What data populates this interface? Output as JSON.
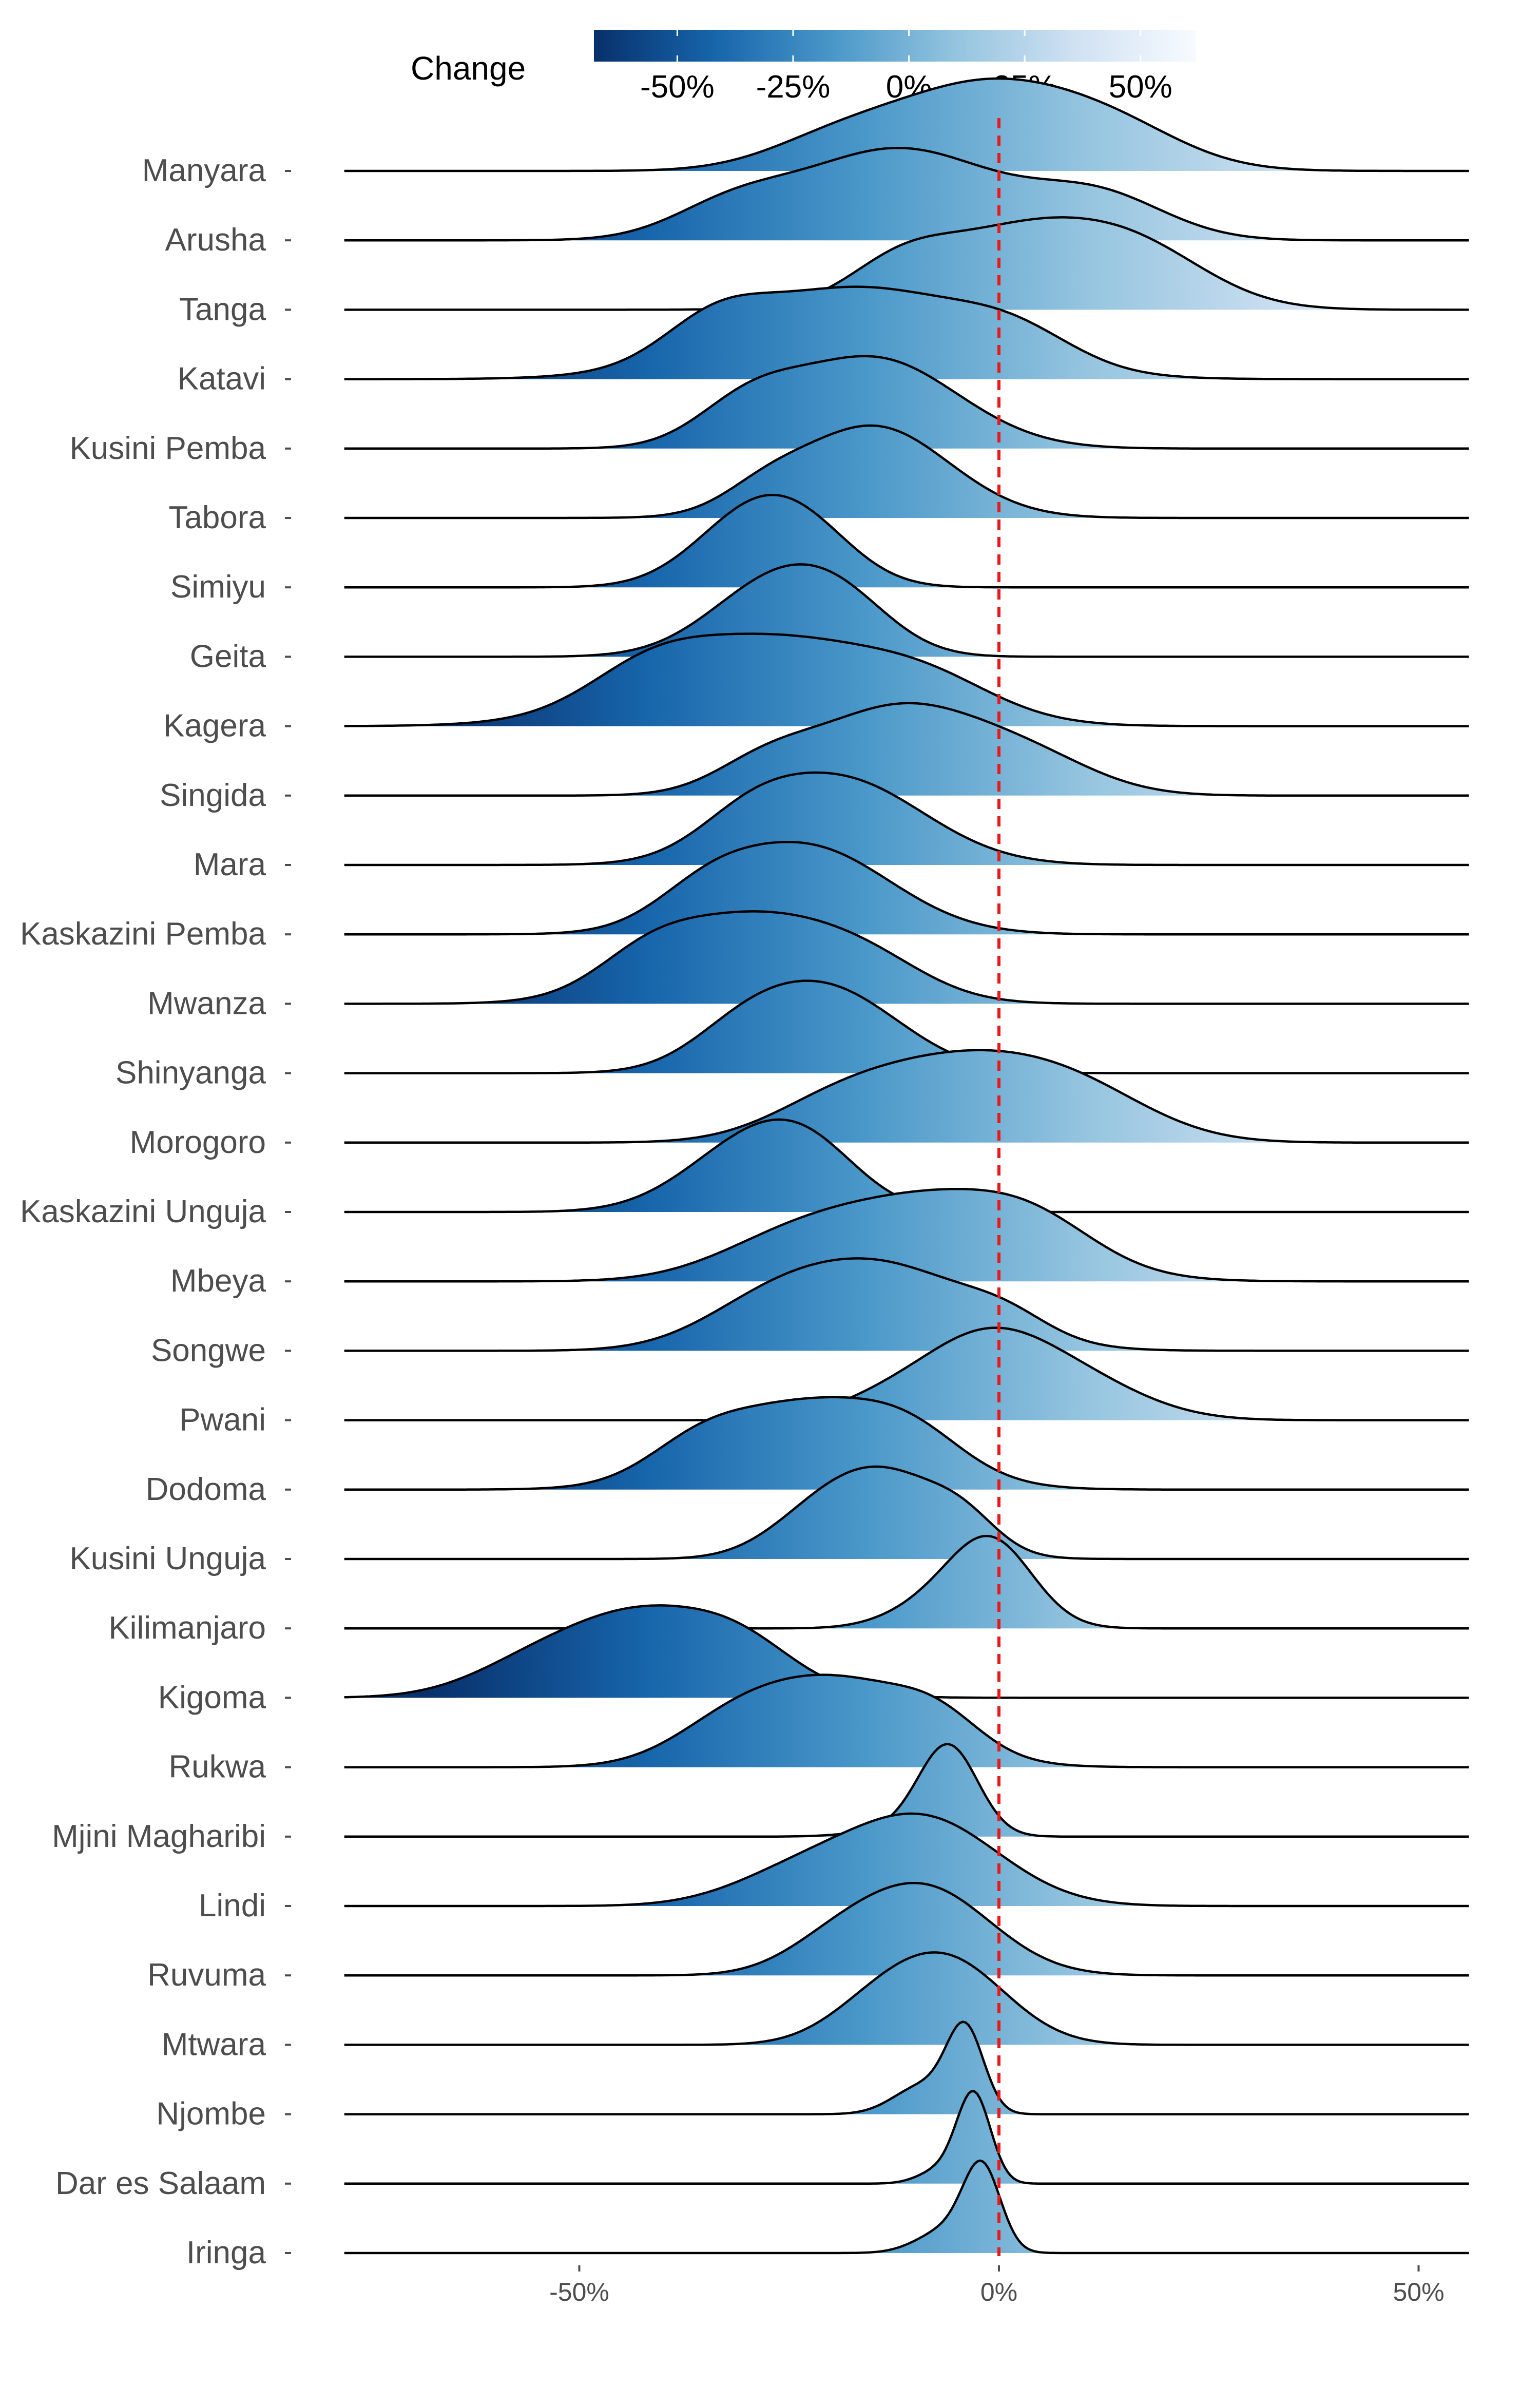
{
  "chart_data": {
    "type": "ridgeline",
    "xlim": [
      -78,
      56
    ],
    "x_ticks": [
      -50,
      0,
      50
    ],
    "x_tick_labels": [
      "-50%",
      "0%",
      "50%"
    ],
    "reference_line_x": 0,
    "reference_line_color": "#e8191c",
    "legend": {
      "title": "Change",
      "placement": "top",
      "range": [
        -68,
        62
      ],
      "ticks": [
        -50,
        -25,
        0,
        25,
        50
      ],
      "tick_labels": [
        "-50%",
        "-25%",
        "0%",
        "25%",
        "50%"
      ],
      "colors": [
        "#08306b",
        "#1765ab",
        "#4a98c9",
        "#94c4df",
        "#d0e1f2",
        "#f7fbff"
      ]
    },
    "series": [
      {
        "name": "Manyara",
        "peaks": [
          [
            -1,
            1.0,
            12
          ],
          [
            -20,
            0.25,
            8
          ],
          [
            15,
            0.25,
            8
          ]
        ]
      },
      {
        "name": "Arusha",
        "peaks": [
          [
            -12,
            1.0,
            12
          ],
          [
            -32,
            0.3,
            7
          ],
          [
            12,
            0.45,
            8
          ]
        ]
      },
      {
        "name": "Tanga",
        "peaks": [
          [
            4,
            1.0,
            12
          ],
          [
            -12,
            0.35,
            6
          ],
          [
            18,
            0.35,
            8
          ]
        ]
      },
      {
        "name": "Katavi",
        "peaks": [
          [
            -17,
            1.0,
            14
          ],
          [
            -34,
            0.35,
            6
          ],
          [
            2,
            0.3,
            7
          ]
        ]
      },
      {
        "name": "Kusini Pemba",
        "peaks": [
          [
            -15,
            1.0,
            10
          ],
          [
            -30,
            0.4,
            6
          ]
        ]
      },
      {
        "name": "Tabora",
        "peaks": [
          [
            -15,
            1.0,
            9
          ],
          [
            -28,
            0.2,
            5
          ]
        ]
      },
      {
        "name": "Simiyu",
        "peaks": [
          [
            -29,
            1.0,
            7
          ],
          [
            -22,
            0.4,
            6
          ]
        ]
      },
      {
        "name": "Geita",
        "peaks": [
          [
            -26,
            1.0,
            8
          ],
          [
            -18,
            0.35,
            6
          ]
        ]
      },
      {
        "name": "Kagera",
        "peaks": [
          [
            -27,
            1.0,
            14
          ],
          [
            -42,
            0.3,
            7
          ],
          [
            -8,
            0.3,
            8
          ]
        ]
      },
      {
        "name": "Singida",
        "peaks": [
          [
            -12,
            1.0,
            10
          ],
          [
            4,
            0.35,
            8
          ],
          [
            -28,
            0.3,
            6
          ]
        ]
      },
      {
        "name": "Mara",
        "peaks": [
          [
            -19,
            1.0,
            10
          ],
          [
            -30,
            0.3,
            6
          ]
        ]
      },
      {
        "name": "Kaskazini Pemba",
        "peaks": [
          [
            -23,
            1.0,
            10
          ],
          [
            -35,
            0.3,
            6
          ]
        ]
      },
      {
        "name": "Mwanza",
        "peaks": [
          [
            -29,
            1.0,
            11
          ],
          [
            -42,
            0.3,
            6
          ],
          [
            -15,
            0.25,
            7
          ]
        ]
      },
      {
        "name": "Shinyanga",
        "peaks": [
          [
            -21,
            1.0,
            9
          ],
          [
            -31,
            0.25,
            6
          ]
        ]
      },
      {
        "name": "Morogoro",
        "peaks": [
          [
            -5,
            1.0,
            11
          ],
          [
            -20,
            0.35,
            8
          ],
          [
            10,
            0.5,
            9
          ]
        ]
      },
      {
        "name": "Kaskazini Unguja",
        "peaks": [
          [
            -29,
            1.0,
            8
          ],
          [
            -22,
            0.45,
            6
          ]
        ]
      },
      {
        "name": "Mbeya",
        "peaks": [
          [
            -7,
            1.0,
            12
          ],
          [
            -25,
            0.4,
            9
          ],
          [
            5,
            0.3,
            7
          ]
        ]
      },
      {
        "name": "Songwe",
        "peaks": [
          [
            -14,
            1.0,
            11
          ],
          [
            -28,
            0.35,
            8
          ],
          [
            1,
            0.2,
            5
          ]
        ]
      },
      {
        "name": "Pwani",
        "peaks": [
          [
            -2,
            1.0,
            8
          ],
          [
            10,
            0.4,
            8
          ],
          [
            -15,
            0.15,
            6
          ]
        ]
      },
      {
        "name": "Dodoma",
        "peaks": [
          [
            -22,
            1.0,
            11
          ],
          [
            -36,
            0.3,
            6
          ],
          [
            -10,
            0.3,
            6
          ]
        ]
      },
      {
        "name": "Kusini Unguja",
        "peaks": [
          [
            -13,
            1.0,
            7
          ],
          [
            -22,
            0.4,
            6
          ],
          [
            -4,
            0.3,
            4
          ]
        ]
      },
      {
        "name": "Kilimanjaro",
        "peaks": [
          [
            -1,
            1.0,
            5
          ],
          [
            -9,
            0.2,
            5
          ]
        ]
      },
      {
        "name": "Kigoma",
        "peaks": [
          [
            -42,
            1.0,
            11
          ],
          [
            -57,
            0.15,
            7
          ],
          [
            -30,
            0.25,
            6
          ]
        ]
      },
      {
        "name": "Rukwa",
        "peaks": [
          [
            -19,
            1.0,
            10
          ],
          [
            -32,
            0.35,
            7
          ],
          [
            -7,
            0.3,
            5
          ]
        ]
      },
      {
        "name": "Mjini Magharibi",
        "peaks": [
          [
            -6,
            1.0,
            3.5
          ],
          [
            -11,
            0.1,
            5
          ]
        ]
      },
      {
        "name": "Lindi",
        "peaks": [
          [
            -9,
            1.0,
            9
          ],
          [
            -24,
            0.35,
            8
          ]
        ]
      },
      {
        "name": "Ruvuma",
        "peaks": [
          [
            -9,
            1.0,
            8
          ],
          [
            -20,
            0.25,
            6
          ]
        ]
      },
      {
        "name": "Mtwara",
        "peaks": [
          [
            -6,
            1.0,
            7
          ],
          [
            -15,
            0.35,
            6
          ]
        ]
      },
      {
        "name": "Njombe",
        "peaks": [
          [
            -4,
            1.0,
            2.2
          ],
          [
            -9,
            0.35,
            3.5
          ]
        ]
      },
      {
        "name": "Dar es Salaam",
        "peaks": [
          [
            -3,
            1.0,
            2.0
          ],
          [
            -7,
            0.15,
            2.5
          ]
        ]
      },
      {
        "name": "Iringa",
        "peaks": [
          [
            -2,
            1.0,
            2.2
          ],
          [
            -6,
            0.3,
            3.5
          ]
        ]
      }
    ]
  }
}
